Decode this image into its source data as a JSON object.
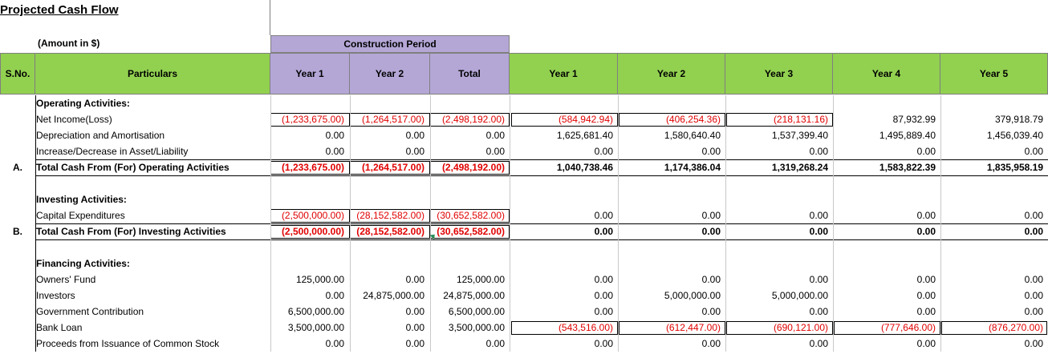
{
  "title": "Projected Cash Flow",
  "amount_note": "(Amount in $)",
  "construction_period_label": "Construction Period",
  "headers": {
    "sno": "S.No.",
    "particulars": "Particulars",
    "cp": [
      "Year 1",
      "Year 2",
      "Total"
    ],
    "op": [
      "Year 1",
      "Year 2",
      "Year 3",
      "Year 4",
      "Year 5"
    ]
  },
  "colors": {
    "green": "#92d050",
    "purple": "#b4a7d6",
    "negative": "#e00000"
  },
  "rows": [
    {
      "label": "Operating Activities:",
      "bold": true,
      "sno": "",
      "values": []
    },
    {
      "label": "Net Income(Loss)",
      "values": [
        "(1,233,675.00)",
        "(1,264,517.00)",
        "(2,498,192.00)",
        "(584,942.94)",
        "(406,254.36)",
        "(218,131.16)",
        "87,932.99",
        "379,918.79"
      ]
    },
    {
      "label": "Depreciation and Amortisation",
      "values": [
        "0.00",
        "0.00",
        "0.00",
        "1,625,681.40",
        "1,580,640.40",
        "1,537,399.40",
        "1,495,889.40",
        "1,456,039.40"
      ]
    },
    {
      "label": "Increase/Decrease in Asset/Liability",
      "values": [
        "0.00",
        "0.00",
        "0.00",
        "0.00",
        "0.00",
        "0.00",
        "0.00",
        "0.00"
      ]
    },
    {
      "label": "Total Cash From (For) Operating Activities",
      "bold": true,
      "sno": "A.",
      "total": true,
      "values": [
        "(1,233,675.00)",
        "(1,264,517.00)",
        "(2,498,192.00)",
        "1,040,738.46",
        "1,174,386.04",
        "1,319,268.24",
        "1,583,822.39",
        "1,835,958.19"
      ]
    },
    {
      "label": "",
      "values": []
    },
    {
      "label": "Investing Activities:",
      "bold": true,
      "values": []
    },
    {
      "label": "Capital Expenditures",
      "values": [
        "(2,500,000.00)",
        "(28,152,582.00)",
        "(30,652,582.00)",
        "0.00",
        "0.00",
        "0.00",
        "0.00",
        "0.00"
      ]
    },
    {
      "label": "Total Cash From (For) Investing Activities",
      "bold": true,
      "sno": "B.",
      "total": true,
      "values": [
        "(2,500,000.00)",
        "(28,152,582.00)",
        "(30,652,582.00)",
        "0.00",
        "0.00",
        "0.00",
        "0.00",
        "0.00"
      ]
    },
    {
      "label": "",
      "values": []
    },
    {
      "label": "Financing Activities:",
      "bold": true,
      "values": []
    },
    {
      "label": "Owners' Fund",
      "values": [
        "125,000.00",
        "0.00",
        "125,000.00",
        "0.00",
        "0.00",
        "0.00",
        "0.00",
        "0.00"
      ]
    },
    {
      "label": "Investors",
      "values": [
        "0.00",
        "24,875,000.00",
        "24,875,000.00",
        "0.00",
        "5,000,000.00",
        "5,000,000.00",
        "0.00",
        "0.00"
      ]
    },
    {
      "label": "Government Contribution",
      "values": [
        "6,500,000.00",
        "0.00",
        "6,500,000.00",
        "0.00",
        "0.00",
        "0.00",
        "0.00",
        "0.00"
      ]
    },
    {
      "label": "Bank Loan",
      "values": [
        "3,500,000.00",
        "0.00",
        "3,500,000.00",
        "(543,516.00)",
        "(612,447.00)",
        "(690,121.00)",
        "(777,646.00)",
        "(876,270.00)"
      ]
    },
    {
      "label": "Proceeds from Issuance of Common Stock",
      "values": [
        "0.00",
        "0.00",
        "0.00",
        "0.00",
        "0.00",
        "0.00",
        "0.00",
        "0.00"
      ]
    }
  ]
}
